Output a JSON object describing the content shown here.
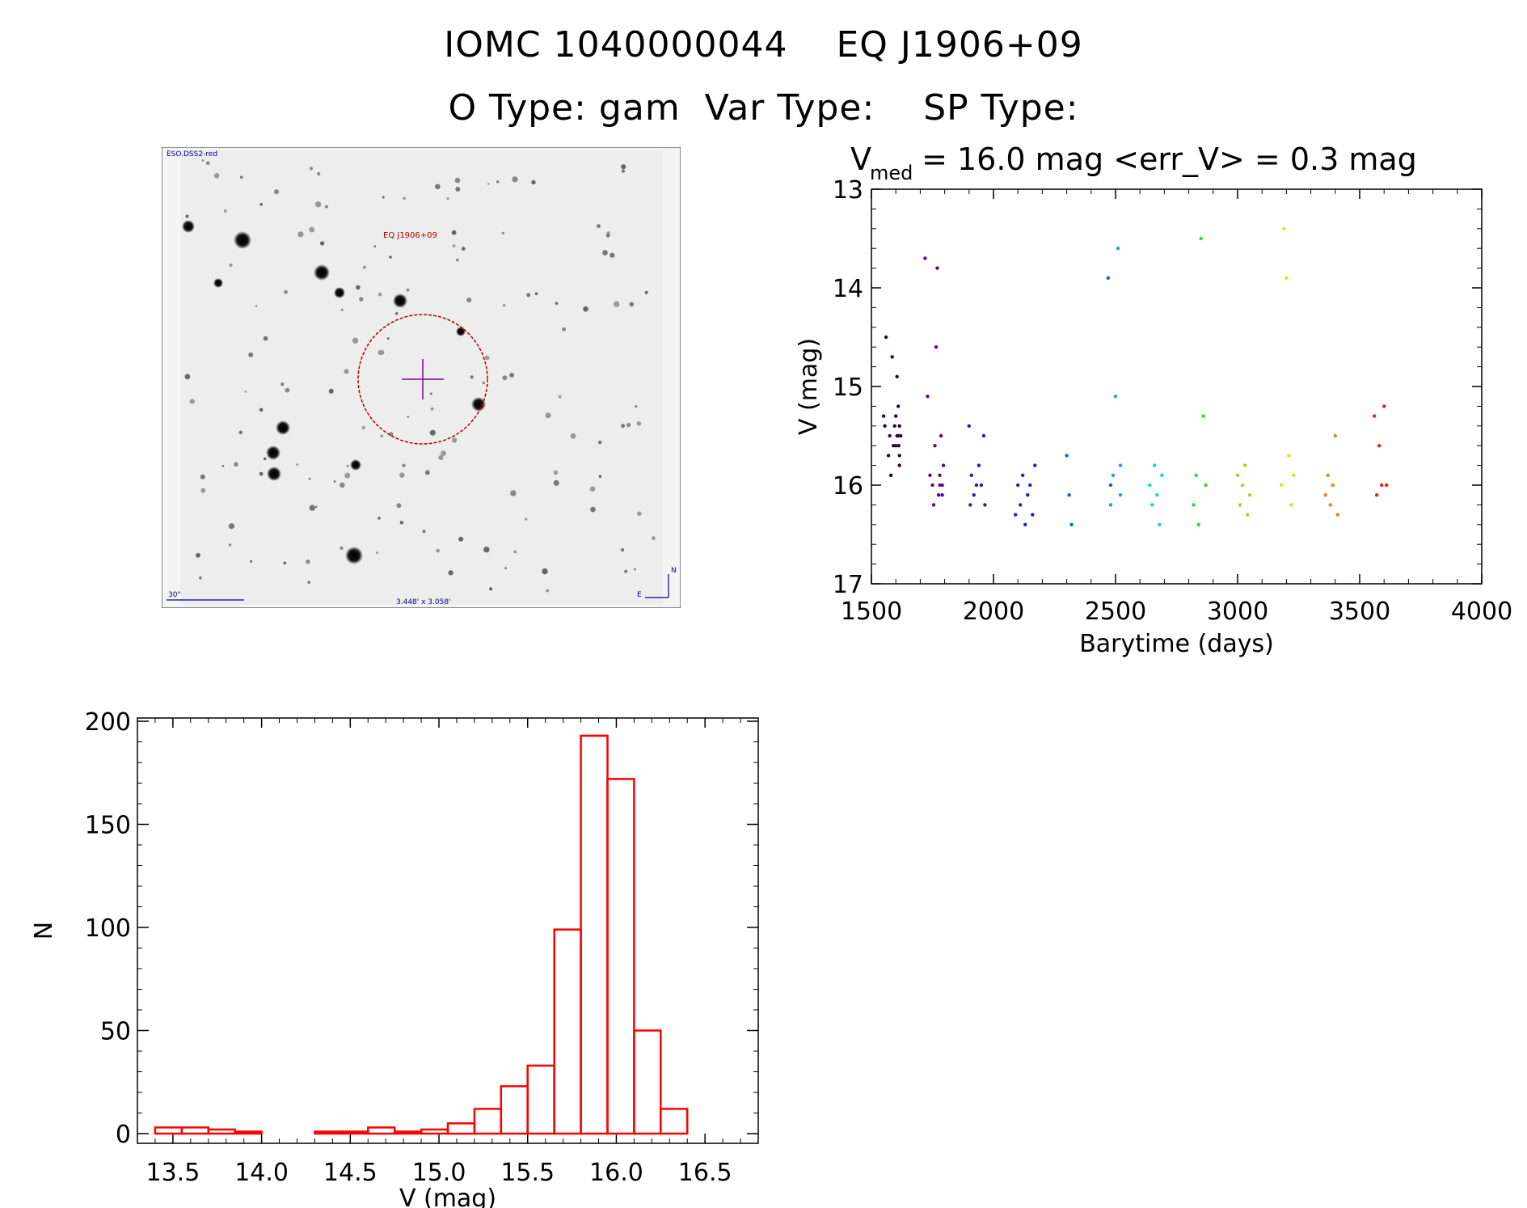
{
  "header": {
    "title": "IOMC 1040000044    EQ J1906+09",
    "subtitle": "O Type: gam  Var Type:    SP Type:"
  },
  "finder": {
    "survey": "ESO.DSS2-red",
    "target_label": "EQ J1906+09",
    "scale_label": "30\"",
    "fov_label": "3.448' x 3.058'",
    "north": "N",
    "east": "E"
  },
  "lightcurve_stats": {
    "v_label": "V",
    "v_sub": "med",
    "text": " = 16.0 mag <err_V> = 0.3 mag"
  },
  "chart_data": [
    {
      "type": "scatter",
      "xlabel": "Barytime (days)",
      "ylabel": "V (mag)",
      "xlim": [
        1500,
        4000
      ],
      "ylim": [
        17,
        13
      ],
      "xticks": [
        "1500",
        "2000",
        "2500",
        "3000",
        "3500",
        "4000"
      ],
      "yticks": [
        "13",
        "14",
        "15",
        "16",
        "17"
      ],
      "series": [
        {
          "color": "#3a0030",
          "x": [
            1550,
            1555,
            1560,
            1570,
            1575,
            1580,
            1585,
            1590,
            1595,
            1600,
            1600,
            1605,
            1605,
            1610,
            1610,
            1612,
            1615,
            1615,
            1615,
            1620
          ],
          "y": [
            15.3,
            15.4,
            14.5,
            15.7,
            15.5,
            15.9,
            14.7,
            15.6,
            15.4,
            15.3,
            15.6,
            14.9,
            15.5,
            15.2,
            15.5,
            15.6,
            15.4,
            15.7,
            15.8,
            15.5
          ]
        },
        {
          "color": "#6a0090",
          "x": [
            1720,
            1730,
            1740,
            1750,
            1755,
            1760,
            1765,
            1770,
            1775,
            1780,
            1780,
            1785,
            1790,
            1790,
            1795
          ],
          "y": [
            13.7,
            15.1,
            15.9,
            16.0,
            16.2,
            15.6,
            14.6,
            13.8,
            16.1,
            15.9,
            16.0,
            15.5,
            16.1,
            16.0,
            15.8
          ]
        },
        {
          "color": "#3a10c0",
          "x": [
            1900,
            1905,
            1910,
            1920,
            1930,
            1940,
            1950,
            1960,
            1965
          ],
          "y": [
            15.4,
            16.2,
            15.9,
            16.1,
            16.0,
            15.8,
            16.0,
            15.5,
            16.2
          ]
        },
        {
          "color": "#1a20d8",
          "x": [
            2090,
            2100,
            2110,
            2120,
            2130,
            2140,
            2150,
            2160,
            2170
          ],
          "y": [
            16.3,
            16.0,
            16.2,
            15.9,
            16.4,
            16.1,
            16.0,
            16.3,
            15.8
          ]
        },
        {
          "color": "#1060e0",
          "x": [
            2300,
            2310,
            2320,
            2470,
            2480
          ],
          "y": [
            15.7,
            16.1,
            16.4,
            13.9,
            16.0
          ]
        },
        {
          "color": "#10a8e8",
          "x": [
            2480,
            2490,
            2500,
            2510,
            2520,
            2520
          ],
          "y": [
            16.2,
            15.9,
            15.1,
            13.6,
            16.1,
            15.8
          ]
        },
        {
          "color": "#10d8c8",
          "x": [
            2640,
            2650,
            2660,
            2670,
            2680,
            2690
          ],
          "y": [
            16.0,
            16.2,
            15.8,
            16.1,
            16.4,
            15.9
          ]
        },
        {
          "color": "#18e818",
          "x": [
            2820,
            2830,
            2840,
            2850,
            2860,
            2870
          ],
          "y": [
            16.2,
            15.9,
            16.4,
            13.5,
            15.3,
            16.0
          ]
        },
        {
          "color": "#90e018",
          "x": [
            3000,
            3010,
            3020,
            3030,
            3040,
            3050
          ],
          "y": [
            15.9,
            16.2,
            16.0,
            15.8,
            16.3,
            16.1
          ]
        },
        {
          "color": "#e0e010",
          "x": [
            3180,
            3190,
            3200,
            3210,
            3220,
            3230
          ],
          "y": [
            16.0,
            13.4,
            13.9,
            15.7,
            16.2,
            15.9
          ]
        },
        {
          "color": "#f08018",
          "x": [
            3360,
            3370,
            3380,
            3390,
            3400,
            3410
          ],
          "y": [
            16.1,
            15.9,
            16.2,
            16.0,
            15.5,
            16.3
          ]
        },
        {
          "color": "#e82010",
          "x": [
            3560,
            3570,
            3580,
            3590,
            3600,
            3610
          ],
          "y": [
            15.3,
            16.1,
            15.6,
            16.0,
            15.2,
            16.0
          ]
        }
      ]
    },
    {
      "type": "bar",
      "subtype": "histogram",
      "xlabel": "V (mag)",
      "ylabel": "N",
      "xlim": [
        13.3,
        16.8
      ],
      "ylim": [
        0,
        200
      ],
      "xticks": [
        "13.5",
        "14.0",
        "14.5",
        "15.0",
        "15.5",
        "16.0",
        "16.5"
      ],
      "yticks": [
        "0",
        "50",
        "100",
        "150",
        "200"
      ],
      "bin_width": 0.15,
      "bin_starts": [
        13.4,
        13.55,
        13.7,
        13.85,
        14.0,
        14.15,
        14.3,
        14.45,
        14.6,
        14.75,
        14.9,
        15.05,
        15.2,
        15.35,
        15.5,
        15.65,
        15.8,
        15.95,
        16.1,
        16.25,
        16.4
      ],
      "values": [
        3,
        3,
        2,
        1,
        0,
        0,
        1,
        1,
        3,
        1,
        2,
        5,
        12,
        23,
        33,
        99,
        193,
        172,
        50,
        12,
        0
      ],
      "color": "#ff0000"
    }
  ]
}
